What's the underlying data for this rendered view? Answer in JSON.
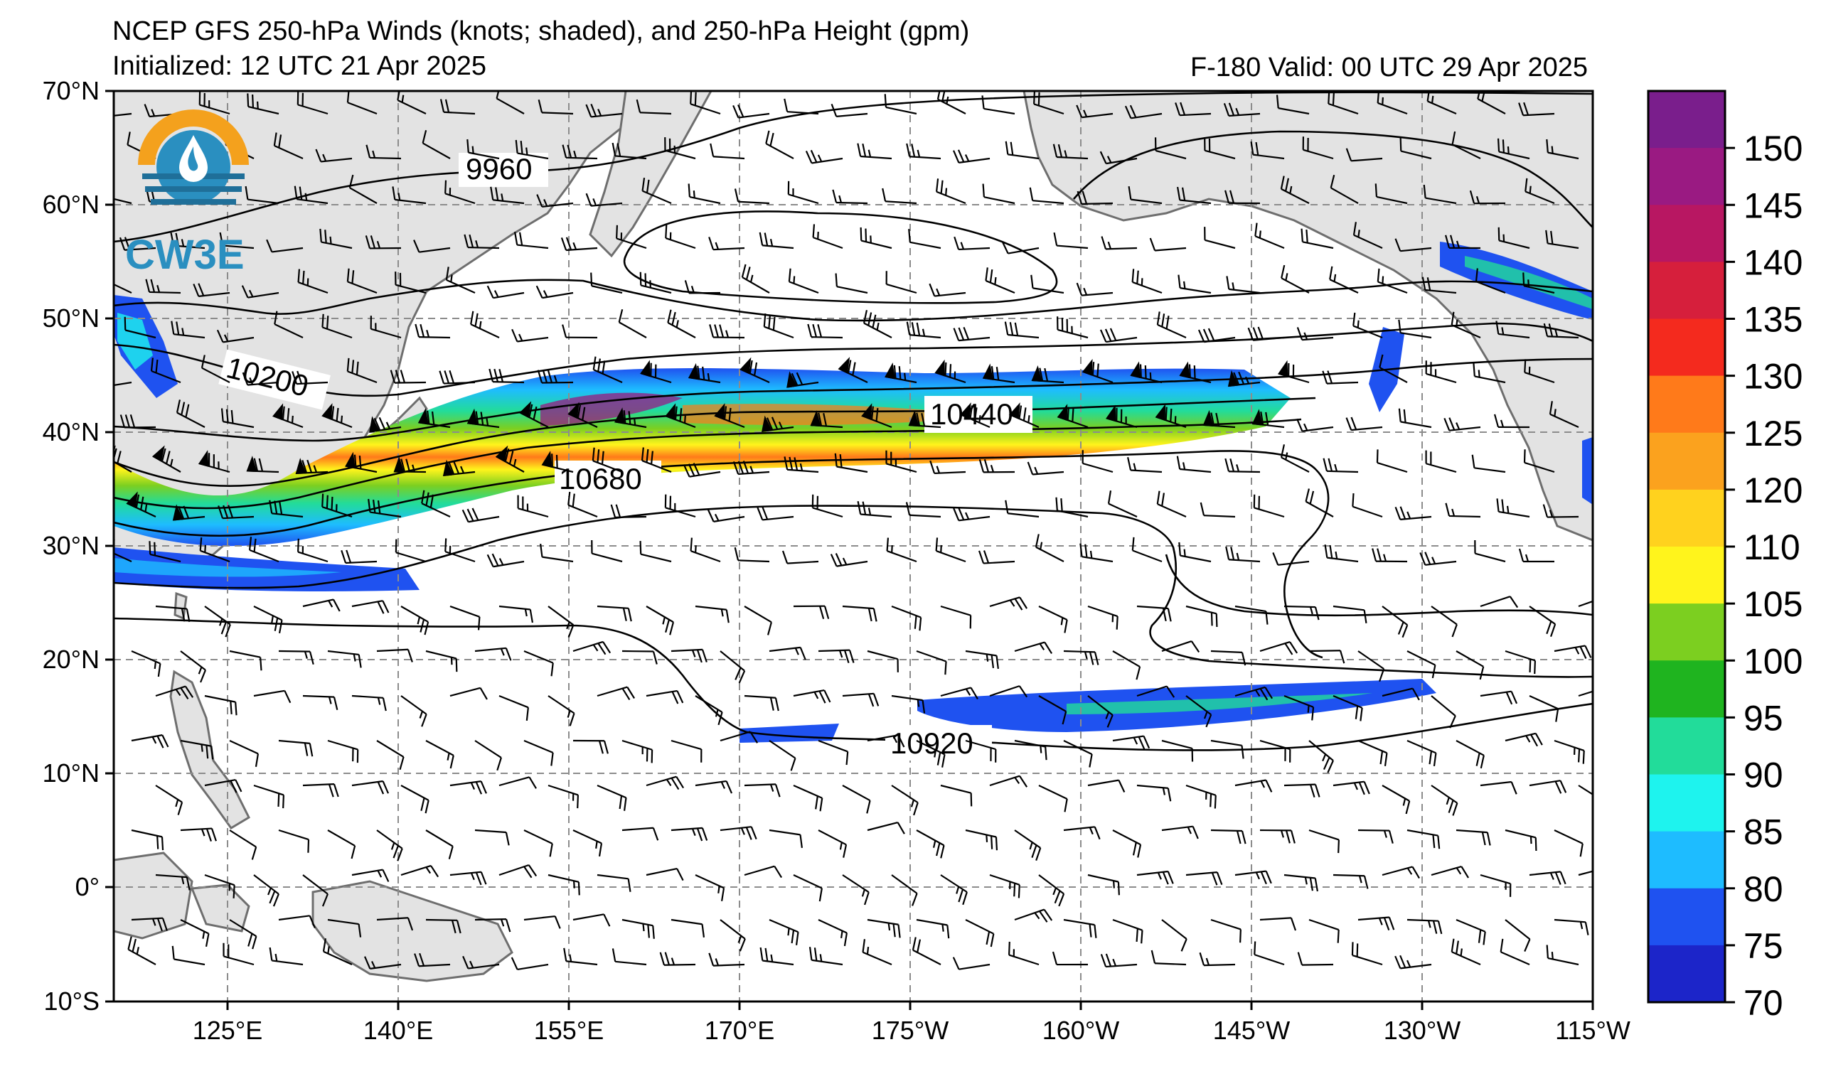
{
  "header": {
    "title": "NCEP GFS 250-hPa Winds (knots; shaded), and 250-hPa Height (gpm)",
    "initialized": "Initialized: 12 UTC 21 Apr 2025",
    "valid": "F-180  Valid: 00 UTC 29 Apr 2025"
  },
  "logo": {
    "text": "CW3E",
    "colors": {
      "orange": "#f4a11d",
      "blue": "#2a8fc0",
      "dark_blue": "#1f6f99"
    }
  },
  "map": {
    "lat_labels": [
      "70°N",
      "60°N",
      "50°N",
      "40°N",
      "30°N",
      "20°N",
      "10°N",
      "0°",
      "10°S"
    ],
    "lon_labels": [
      "125°E",
      "140°E",
      "155°E",
      "170°E",
      "175°W",
      "160°W",
      "145°W",
      "130°W",
      "115°W"
    ],
    "contour_labels": [
      "9960",
      "10200",
      "10440",
      "10680",
      "10920"
    ],
    "colors": {
      "land": "#e3e3e3",
      "coast": "#6e6e6e",
      "grid": "#8c8c8c",
      "contour": "#000000",
      "barb": "#000000"
    }
  },
  "colorbar": {
    "labels": [
      "150",
      "145",
      "140",
      "135",
      "130",
      "125",
      "120",
      "110",
      "105",
      "100",
      "95",
      "90",
      "85",
      "80",
      "75",
      "70"
    ],
    "colors": [
      "#7a1e8c",
      "#9a1a82",
      "#b81762",
      "#d61f3c",
      "#f42a1e",
      "#ff7a1a",
      "#fba21e",
      "#ffd21e",
      "#fff41c",
      "#7ccf20",
      "#1fb41f",
      "#22dc9a",
      "#1ef3ee",
      "#1ebcff",
      "#1f52f0",
      "#1c25c9"
    ]
  }
}
